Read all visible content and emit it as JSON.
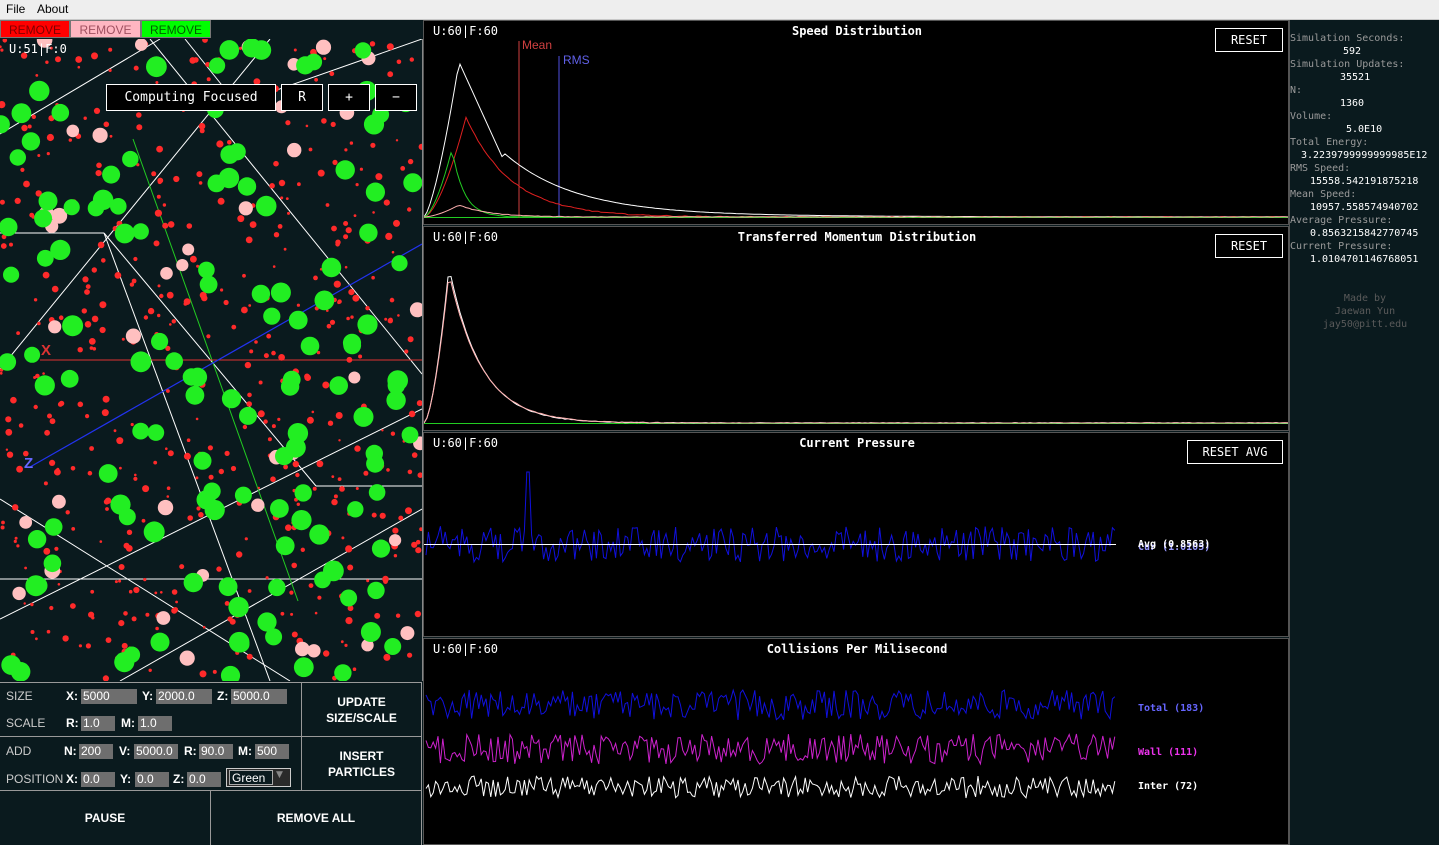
{
  "menu": {
    "items": [
      "File",
      "About"
    ]
  },
  "remove_buttons": [
    {
      "label": "REMOVE",
      "bg": "#ff0000",
      "fg": "#800000"
    },
    {
      "label": "REMOVE",
      "bg": "#ffb6c1",
      "fg": "#a05060"
    },
    {
      "label": "REMOVE",
      "bg": "#00ff00",
      "fg": "#006000"
    }
  ],
  "simulation": {
    "fps_label": "U:51|F:0",
    "focus_button": "Computing Focused",
    "reset_view_button": "R",
    "zoom_in_button": "+",
    "zoom_out_button": "−",
    "axis_labels": {
      "x": "X",
      "z": "Z"
    },
    "particle_colors": {
      "red": "#ff2a2a",
      "pink": "#ffc0c0",
      "green": "#22ee22"
    }
  },
  "controls": {
    "size_label": "SIZE",
    "scale_label": "SCALE",
    "add_label": "ADD",
    "position_label": "POSITION",
    "size": {
      "x": "5000",
      "y": "2000.0",
      "z": "5000.0"
    },
    "scale": {
      "r": "1.0",
      "m": "1.0"
    },
    "add": {
      "n": "200",
      "v": "5000.0",
      "r": "90.0",
      "m": "500"
    },
    "position": {
      "x": "0.0",
      "y": "0.0",
      "z": "0.0",
      "color": "Green"
    },
    "keys": {
      "x": "X:",
      "y": "Y:",
      "z": "Z:",
      "r": "R:",
      "m": "M:",
      "n": "N:",
      "v": "V:"
    },
    "update_button": "UPDATE SIZE/SCALE",
    "insert_button": "INSERT PARTICLES",
    "pause_button": "PAUSE",
    "remove_all_button": "REMOVE ALL"
  },
  "plots": [
    {
      "fps": "U:60|F:60",
      "title": "Speed Distribution",
      "button": "RESET",
      "markers": [
        {
          "label": "Mean",
          "color": "#d04040"
        },
        {
          "label": "RMS",
          "color": "#5050e0"
        }
      ]
    },
    {
      "fps": "U:60|F:60",
      "title": "Transferred Momentum Distribution",
      "button": "RESET"
    },
    {
      "fps": "U:60|F:60",
      "title": "Current Pressure",
      "button": "RESET AVG",
      "legends": [
        {
          "label": "Avg (0.8563)",
          "color": "#ffffff"
        },
        {
          "label": "Cur (1.0105)",
          "color": "#9999ff"
        }
      ]
    },
    {
      "fps": "U:60|F:60",
      "title": "Collisions Per Milisecond",
      "legends": [
        {
          "label": "Total (183)",
          "color": "#6666ff"
        },
        {
          "label": "Wall (111)",
          "color": "#ee33ee"
        },
        {
          "label": "Inter (72)",
          "color": "#ffffff"
        }
      ]
    }
  ],
  "stats": [
    {
      "label": "Simulation Seconds:",
      "value": "592"
    },
    {
      "label": "Simulation Updates:",
      "value": "35521"
    },
    {
      "label": "N:",
      "value": "1360"
    },
    {
      "label": "Volume:",
      "value": "5.0E10"
    },
    {
      "label": "Total Energy:",
      "value": "3.2239799999999985E12"
    },
    {
      "label": "RMS Speed:",
      "value": "15558.542191875218"
    },
    {
      "label": "Mean Speed:",
      "value": "10957.558574940702"
    },
    {
      "label": "Average Pressure:",
      "value": "0.8563215842770745"
    },
    {
      "label": "Current Pressure:",
      "value": "1.0104701146768051"
    }
  ],
  "credits": [
    "Made by",
    "Jaewan Yun",
    "jay50@pitt.edu"
  ]
}
